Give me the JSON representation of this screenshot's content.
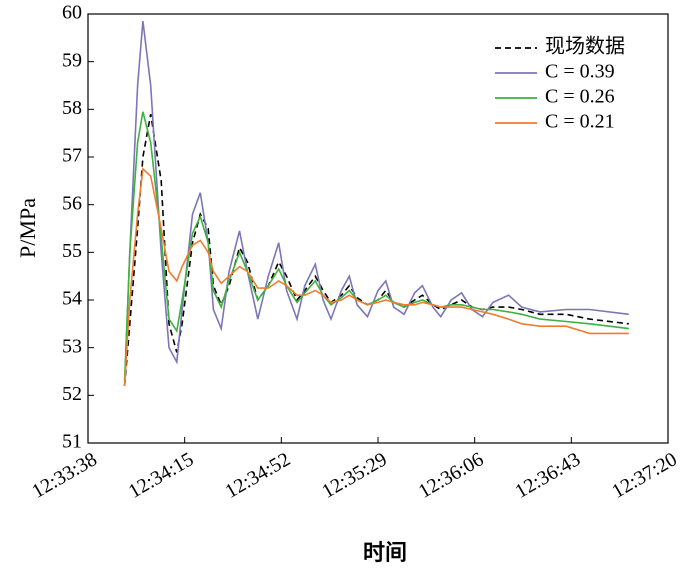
{
  "chart_data": {
    "type": "line",
    "xlabel": "时间",
    "ylabel": "P/MPa",
    "x": [
      "12:33:52",
      "12:33:54",
      "12:33:57",
      "12:33:59",
      "12:34:02",
      "12:34:06",
      "12:34:09",
      "12:34:12",
      "12:34:14",
      "12:34:18",
      "12:34:21",
      "12:34:24",
      "12:34:26",
      "12:34:29",
      "12:34:32",
      "12:34:36",
      "12:34:39",
      "12:34:43",
      "12:34:47",
      "12:34:51",
      "12:34:54",
      "12:34:58",
      "12:35:01",
      "12:35:05",
      "12:35:08",
      "12:35:11",
      "12:35:15",
      "12:35:18",
      "12:35:21",
      "12:35:25",
      "12:35:29",
      "12:35:32",
      "12:35:35",
      "12:35:39",
      "12:35:43",
      "12:35:46",
      "12:35:50",
      "12:35:53",
      "12:35:57",
      "12:36:01",
      "12:36:05",
      "12:36:09",
      "12:36:13",
      "12:36:19",
      "12:36:24",
      "12:36:31",
      "12:36:41",
      "12:36:50",
      "12:37:05"
    ],
    "series": [
      {
        "name": "现场数据",
        "color": "#000000",
        "dashed": true,
        "values": [
          52.2,
          53.5,
          55.5,
          57.0,
          57.9,
          56.5,
          53.5,
          52.9,
          53.5,
          55.2,
          55.8,
          55.5,
          54.3,
          53.9,
          54.3,
          55.1,
          54.8,
          54.0,
          54.3,
          54.8,
          54.5,
          54.0,
          54.2,
          54.5,
          54.2,
          53.95,
          54.1,
          54.3,
          54.05,
          53.9,
          54.0,
          54.2,
          53.95,
          53.85,
          54.0,
          54.1,
          53.9,
          53.8,
          53.9,
          54.0,
          53.85,
          53.8,
          53.85,
          53.85,
          53.8,
          53.7,
          53.7,
          53.6,
          53.5
        ]
      },
      {
        "name": "C = 0.39",
        "color": "#7b76b8",
        "dashed": false,
        "values": [
          52.2,
          55.0,
          58.5,
          59.85,
          58.5,
          55.0,
          53.0,
          52.7,
          53.8,
          55.8,
          56.25,
          55.2,
          53.8,
          53.4,
          54.6,
          55.45,
          54.6,
          53.6,
          54.5,
          55.2,
          54.2,
          53.6,
          54.3,
          54.75,
          54.0,
          53.6,
          54.2,
          54.5,
          53.9,
          53.65,
          54.2,
          54.4,
          53.85,
          53.7,
          54.15,
          54.3,
          53.85,
          53.65,
          54.0,
          54.15,
          53.8,
          53.65,
          53.95,
          54.1,
          53.85,
          53.75,
          53.8,
          53.8,
          53.7
        ]
      },
      {
        "name": "C = 0.26",
        "color": "#3cb33c",
        "dashed": false,
        "values": [
          52.3,
          55.0,
          57.3,
          57.95,
          57.3,
          55.3,
          53.6,
          53.35,
          54.0,
          55.4,
          55.75,
          55.2,
          54.2,
          53.85,
          54.4,
          55.0,
          54.6,
          54.0,
          54.3,
          54.65,
          54.3,
          53.95,
          54.15,
          54.4,
          54.1,
          53.9,
          54.05,
          54.2,
          54.0,
          53.9,
          54.0,
          54.1,
          53.95,
          53.85,
          53.95,
          54.0,
          53.9,
          53.85,
          53.9,
          53.9,
          53.85,
          53.8,
          53.8,
          53.75,
          53.7,
          53.6,
          53.55,
          53.5,
          53.4
        ]
      },
      {
        "name": "C = 0.21",
        "color": "#f07c30",
        "dashed": false,
        "values": [
          52.2,
          54.0,
          55.8,
          56.75,
          56.6,
          55.5,
          54.6,
          54.4,
          54.7,
          55.15,
          55.25,
          55.0,
          54.6,
          54.35,
          54.5,
          54.7,
          54.6,
          54.25,
          54.25,
          54.4,
          54.3,
          54.1,
          54.1,
          54.2,
          54.1,
          53.95,
          54.0,
          54.1,
          54.0,
          53.9,
          53.95,
          54.0,
          53.95,
          53.9,
          53.9,
          53.95,
          53.9,
          53.85,
          53.85,
          53.85,
          53.8,
          53.75,
          53.7,
          53.6,
          53.5,
          53.45,
          53.45,
          53.3,
          53.3
        ]
      }
    ],
    "xlim": [
      "12:33:38",
      "12:37:20"
    ],
    "xticks": [
      "12:33:38",
      "12:34:15",
      "12:34:52",
      "12:35:29",
      "12:36:06",
      "12:36:43",
      "12:37:20"
    ],
    "ylim": [
      51,
      60
    ],
    "yticks": [
      51,
      52,
      53,
      54,
      55,
      56,
      57,
      58,
      59,
      60
    ],
    "grid": false,
    "legend": "upper right"
  }
}
